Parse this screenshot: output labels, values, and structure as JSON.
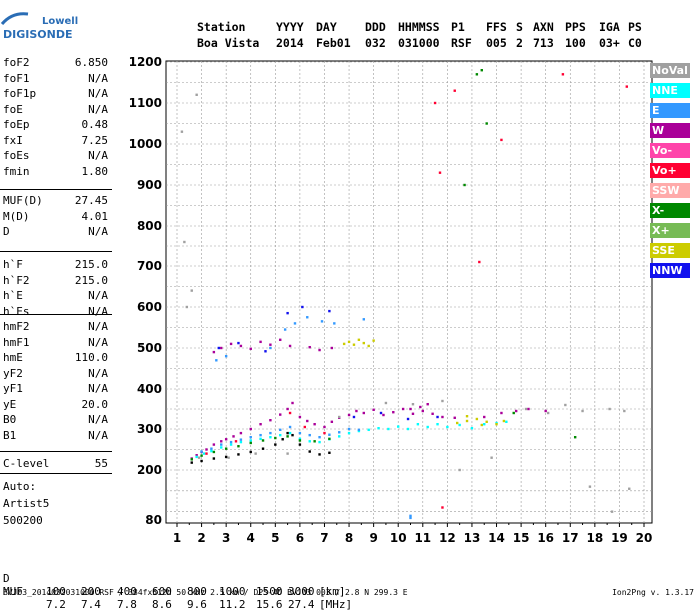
{
  "logo": {
    "line1": "Lowell",
    "line2": "DIGISONDE"
  },
  "header": {
    "row1": [
      "Station",
      "YYYY",
      "DAY",
      "DDD",
      "HHMMSS",
      "P1",
      "FFS",
      "S",
      "AXN",
      "PPS",
      "IGA",
      "PS"
    ],
    "row2": [
      "Boa Vista",
      "2014",
      "Feb01",
      "032",
      "031000",
      "RSF",
      "005",
      "2",
      "713",
      "100",
      "03+",
      "C0"
    ]
  },
  "params": {
    "g1": [
      {
        "k": "foF2",
        "v": "6.850"
      },
      {
        "k": "foF1",
        "v": "N/A"
      },
      {
        "k": "foF1p",
        "v": "N/A"
      },
      {
        "k": "foE",
        "v": "N/A"
      },
      {
        "k": "foEp",
        "v": "0.48"
      },
      {
        "k": "fxI",
        "v": "7.25"
      },
      {
        "k": "foEs",
        "v": "N/A"
      },
      {
        "k": "fmin",
        "v": "1.80"
      }
    ],
    "g2": [
      {
        "k": "MUF(D)",
        "v": "27.45"
      },
      {
        "k": "M(D)",
        "v": "4.01"
      },
      {
        "k": "D",
        "v": "N/A"
      }
    ],
    "g3": [
      {
        "k": "h`F",
        "v": "215.0"
      },
      {
        "k": "h`F2",
        "v": "215.0"
      },
      {
        "k": "h`E",
        "v": "N/A"
      },
      {
        "k": "h`Es",
        "v": "N/A"
      }
    ],
    "g4": [
      {
        "k": "hmF2",
        "v": "N/A"
      },
      {
        "k": "hmF1",
        "v": "N/A"
      },
      {
        "k": "hmE",
        "v": "110.0"
      },
      {
        "k": "yF2",
        "v": "N/A"
      },
      {
        "k": "yF1",
        "v": "N/A"
      },
      {
        "k": "yE",
        "v": "20.0"
      },
      {
        "k": "B0",
        "v": "N/A"
      },
      {
        "k": "B1",
        "v": "N/A"
      }
    ],
    "g5": [
      {
        "k": "C-level",
        "v": "55"
      }
    ],
    "auto": [
      "Auto:",
      "Artist5",
      "500200"
    ]
  },
  "legend": [
    {
      "label": "NoVal",
      "color": "#a0a0a0",
      "text": "#ffffff"
    },
    {
      "label": "NNE",
      "color": "#00ffff",
      "text": "#ffffff"
    },
    {
      "label": "E",
      "color": "#3399ff",
      "text": "#ffffff"
    },
    {
      "label": "W",
      "color": "#aa0099",
      "text": "#ffffff"
    },
    {
      "label": "Vo-",
      "color": "#ff44aa",
      "text": "#ffffff"
    },
    {
      "label": "Vo+",
      "color": "#ff0033",
      "text": "#ffffff"
    },
    {
      "label": "SSW",
      "color": "#ffaaaa",
      "text": "#ffffff"
    },
    {
      "label": "X-",
      "color": "#008800",
      "text": "#ffffff"
    },
    {
      "label": "X+",
      "color": "#77bb55",
      "text": "#ffffff"
    },
    {
      "label": "SSE",
      "color": "#cccc00",
      "text": "#ffffff"
    },
    {
      "label": "NNW",
      "color": "#1111ee",
      "text": "#ffffff"
    }
  ],
  "muf_table": {
    "d_label": "D",
    "d_values": [
      "100",
      "200",
      "400",
      "600",
      "800",
      "1000",
      "1500",
      "3000"
    ],
    "d_unit": "[km]",
    "muf_label": "MUF",
    "muf_values": [
      "7.2",
      "7.4",
      "7.8",
      "8.6",
      "9.6",
      "11.2",
      "15.6",
      "27.4"
    ],
    "muf_unit": "[MHz]"
  },
  "footer": {
    "left": "BVJ03_2014032031000.RSF / 384fx512h 50 kHz 2.5 km / DPS-4D BVJ03 003 / 2.8 N 299.3 E",
    "right": "Ion2Png v. 1.3.17"
  },
  "chart_data": {
    "type": "scatter",
    "title": "",
    "xlabel": "",
    "ylabel": "",
    "xlim": [
      1,
      20
    ],
    "ylim": [
      80,
      1200
    ],
    "xticks": [
      1,
      2,
      3,
      4,
      5,
      6,
      7,
      8,
      9,
      10,
      11,
      12,
      13,
      14,
      15,
      16,
      17,
      18,
      19,
      20
    ],
    "yticks": [
      80,
      200,
      300,
      400,
      500,
      600,
      700,
      800,
      900,
      1000,
      1100,
      1200
    ],
    "ytick_labels": [
      "80",
      "200",
      "300",
      "400",
      "500",
      "600",
      "700",
      "800",
      "900",
      "1000",
      "1100",
      "1200"
    ],
    "grid": true,
    "legend_position": "right",
    "series": [
      {
        "color": "#aa0099",
        "points": [
          [
            1.6,
            228
          ],
          [
            1.8,
            236
          ],
          [
            2.0,
            244
          ],
          [
            2.2,
            250
          ],
          [
            2.5,
            262
          ],
          [
            2.8,
            270
          ],
          [
            3.0,
            275
          ],
          [
            3.3,
            282
          ],
          [
            3.6,
            290
          ],
          [
            4.0,
            300
          ],
          [
            4.4,
            312
          ],
          [
            4.8,
            322
          ],
          [
            5.2,
            336
          ],
          [
            5.5,
            350
          ],
          [
            5.7,
            365
          ],
          [
            6.0,
            330
          ],
          [
            6.3,
            320
          ],
          [
            6.6,
            312
          ],
          [
            7.0,
            305
          ],
          [
            7.3,
            318
          ],
          [
            7.6,
            328
          ],
          [
            8.0,
            335
          ],
          [
            8.3,
            345
          ],
          [
            8.6,
            340
          ],
          [
            9.0,
            348
          ],
          [
            9.4,
            335
          ],
          [
            9.8,
            342
          ],
          [
            10.2,
            350
          ],
          [
            10.6,
            338
          ],
          [
            11.0,
            345
          ],
          [
            11.4,
            338
          ],
          [
            11.8,
            330
          ],
          [
            12.3,
            328
          ],
          [
            2.5,
            490
          ],
          [
            2.8,
            500
          ],
          [
            3.2,
            510
          ],
          [
            3.6,
            505
          ],
          [
            4.0,
            498
          ],
          [
            4.4,
            515
          ],
          [
            4.8,
            508
          ],
          [
            5.2,
            520
          ],
          [
            5.6,
            505
          ],
          [
            6.4,
            502
          ],
          [
            6.8,
            495
          ],
          [
            7.3,
            500
          ],
          [
            10.5,
            350
          ],
          [
            10.9,
            355
          ],
          [
            11.2,
            362
          ],
          [
            13.5,
            330
          ],
          [
            14.2,
            340
          ],
          [
            14.8,
            345
          ],
          [
            15.3,
            350
          ],
          [
            16.0,
            345
          ]
        ]
      },
      {
        "color": "#00ffff",
        "points": [
          [
            1.8,
            232
          ],
          [
            2.1,
            240
          ],
          [
            2.4,
            246
          ],
          [
            2.8,
            255
          ],
          [
            3.2,
            262
          ],
          [
            3.6,
            268
          ],
          [
            4.0,
            272
          ],
          [
            4.4,
            276
          ],
          [
            4.8,
            280
          ],
          [
            5.2,
            285
          ],
          [
            5.6,
            290
          ],
          [
            6.0,
            276
          ],
          [
            6.4,
            270
          ],
          [
            6.8,
            268
          ],
          [
            7.2,
            275
          ],
          [
            7.6,
            282
          ],
          [
            8.0,
            290
          ],
          [
            8.4,
            295
          ],
          [
            8.8,
            298
          ],
          [
            9.2,
            302
          ],
          [
            9.6,
            300
          ],
          [
            10.0,
            306
          ],
          [
            10.4,
            300
          ],
          [
            10.8,
            312
          ],
          [
            11.2,
            305
          ],
          [
            11.6,
            312
          ],
          [
            12.0,
            305
          ],
          [
            12.5,
            310
          ],
          [
            13.0,
            302
          ],
          [
            13.5,
            312
          ],
          [
            14.0,
            315
          ],
          [
            14.4,
            318
          ]
        ]
      },
      {
        "color": "#3399ff",
        "points": [
          [
            2.0,
            245
          ],
          [
            2.4,
            252
          ],
          [
            2.8,
            262
          ],
          [
            3.2,
            268
          ],
          [
            3.6,
            274
          ],
          [
            4.0,
            280
          ],
          [
            4.4,
            285
          ],
          [
            4.8,
            290
          ],
          [
            5.2,
            298
          ],
          [
            5.6,
            305
          ],
          [
            6.0,
            290
          ],
          [
            6.4,
            285
          ],
          [
            6.8,
            280
          ],
          [
            7.2,
            286
          ],
          [
            7.6,
            292
          ],
          [
            8.0,
            300
          ],
          [
            8.4,
            298
          ],
          [
            2.6,
            470
          ],
          [
            3.0,
            480
          ],
          [
            4.8,
            500
          ],
          [
            5.4,
            545
          ],
          [
            5.8,
            560
          ],
          [
            6.3,
            575
          ],
          [
            6.9,
            565
          ],
          [
            7.4,
            560
          ],
          [
            8.6,
            570
          ],
          [
            10.5,
            85
          ],
          [
            10.5,
            90
          ]
        ]
      },
      {
        "color": "#cccc00",
        "points": [
          [
            7.8,
            510
          ],
          [
            8.0,
            515
          ],
          [
            8.2,
            508
          ],
          [
            8.4,
            520
          ],
          [
            8.6,
            512
          ],
          [
            8.8,
            505
          ],
          [
            9.0,
            518
          ],
          [
            12.4,
            315
          ],
          [
            12.8,
            320
          ],
          [
            13.2,
            325
          ],
          [
            13.6,
            318
          ],
          [
            14.0,
            312
          ],
          [
            14.3,
            320
          ],
          [
            12.8,
            332
          ],
          [
            13.4,
            310
          ]
        ]
      },
      {
        "color": "#008800",
        "points": [
          [
            1.6,
            226
          ],
          [
            2.0,
            235
          ],
          [
            2.5,
            244
          ],
          [
            3.0,
            252
          ],
          [
            3.5,
            258
          ],
          [
            4.0,
            266
          ],
          [
            4.5,
            272
          ],
          [
            5.0,
            278
          ],
          [
            5.5,
            282
          ],
          [
            6.0,
            272
          ],
          [
            6.6,
            270
          ],
          [
            7.2,
            276
          ],
          [
            12.7,
            900
          ],
          [
            13.2,
            1170
          ],
          [
            13.4,
            1180
          ],
          [
            13.6,
            1050
          ],
          [
            14.7,
            340
          ],
          [
            17.2,
            280
          ]
        ]
      },
      {
        "color": "#ff0033",
        "points": [
          [
            2.2,
            240
          ],
          [
            3.4,
            270
          ],
          [
            5.6,
            340
          ],
          [
            6.2,
            305
          ],
          [
            7.0,
            290
          ],
          [
            11.5,
            1100
          ],
          [
            11.7,
            930
          ],
          [
            12.3,
            1130
          ],
          [
            14.2,
            1010
          ],
          [
            16.7,
            1170
          ],
          [
            19.3,
            1140
          ],
          [
            13.3,
            710
          ],
          [
            11.8,
            110
          ]
        ]
      },
      {
        "color": "#1111ee",
        "points": [
          [
            2.7,
            500
          ],
          [
            3.5,
            512
          ],
          [
            4.6,
            492
          ],
          [
            5.5,
            585
          ],
          [
            6.1,
            600
          ],
          [
            7.2,
            590
          ],
          [
            8.2,
            330
          ],
          [
            9.3,
            340
          ],
          [
            10.4,
            325
          ],
          [
            11.6,
            330
          ]
        ]
      },
      {
        "color": "#000000",
        "points": [
          [
            1.6,
            218
          ],
          [
            2.0,
            222
          ],
          [
            2.5,
            228
          ],
          [
            3.0,
            232
          ],
          [
            3.5,
            238
          ],
          [
            4.0,
            244
          ],
          [
            4.5,
            252
          ],
          [
            5.0,
            262
          ],
          [
            5.3,
            275
          ],
          [
            5.5,
            290
          ],
          [
            5.7,
            285
          ],
          [
            6.0,
            262
          ],
          [
            6.4,
            245
          ],
          [
            6.8,
            238
          ],
          [
            7.2,
            242
          ]
        ]
      },
      {
        "color": "#a0a0a0",
        "points": [
          [
            1.4,
            600
          ],
          [
            1.6,
            640
          ],
          [
            1.3,
            760
          ],
          [
            1.2,
            1030
          ],
          [
            1.8,
            1120
          ],
          [
            1.9,
            230
          ],
          [
            3.1,
            230
          ],
          [
            4.2,
            240
          ],
          [
            5.5,
            240
          ],
          [
            7.6,
            330
          ],
          [
            9.5,
            365
          ],
          [
            10.6,
            362
          ],
          [
            11.8,
            370
          ],
          [
            15.2,
            350
          ],
          [
            16.1,
            340
          ],
          [
            16.8,
            360
          ],
          [
            17.5,
            345
          ],
          [
            18.6,
            350
          ],
          [
            19.2,
            345
          ],
          [
            12.5,
            200
          ],
          [
            13.8,
            230
          ],
          [
            17.8,
            160
          ],
          [
            18.7,
            100
          ],
          [
            19.4,
            155
          ]
        ]
      }
    ]
  }
}
